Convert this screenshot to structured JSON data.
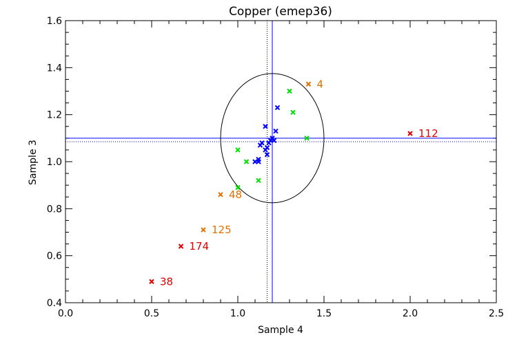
{
  "chart_data": {
    "type": "scatter",
    "title": "Copper (emep36)",
    "xlabel": "Sample 4",
    "ylabel": "Sample 3",
    "xlim": [
      0.0,
      2.5
    ],
    "ylim": [
      0.4,
      1.6
    ],
    "x_ticks": [
      0.0,
      0.5,
      1.0,
      1.5,
      2.0,
      2.5
    ],
    "x_tick_labels": [
      "0.0",
      "0.5",
      "1.0",
      "1.5",
      "2.0",
      "2.5"
    ],
    "y_ticks": [
      0.4,
      0.6,
      0.8,
      1.0,
      1.2,
      1.4,
      1.6
    ],
    "y_tick_labels": [
      "0.4",
      "0.6",
      "0.8",
      "1.0",
      "1.2",
      "1.4",
      "1.6"
    ],
    "reference_lines": {
      "x_solid": 1.2,
      "x_dotted": 1.17,
      "y_solid": 1.1,
      "y_dotted": 1.085
    },
    "ellipse": {
      "cx": 1.2,
      "cy": 1.1,
      "rx": 0.3,
      "ry": 0.275
    },
    "colors": {
      "blue": "#0000ff",
      "green": "#00e000",
      "orange": "#e07000",
      "red": "#e00000",
      "black": "#000000"
    },
    "series": [
      {
        "name": "blue",
        "color": "#0000ff",
        "points": [
          {
            "x": 1.16,
            "y": 1.15
          },
          {
            "x": 1.23,
            "y": 1.23
          },
          {
            "x": 1.22,
            "y": 1.13
          },
          {
            "x": 1.2,
            "y": 1.1
          },
          {
            "x": 1.21,
            "y": 1.09
          },
          {
            "x": 1.19,
            "y": 1.09
          },
          {
            "x": 1.18,
            "y": 1.08
          },
          {
            "x": 1.14,
            "y": 1.08
          },
          {
            "x": 1.13,
            "y": 1.07
          },
          {
            "x": 1.17,
            "y": 1.06
          },
          {
            "x": 1.16,
            "y": 1.05
          },
          {
            "x": 1.17,
            "y": 1.03
          },
          {
            "x": 1.12,
            "y": 1.01
          },
          {
            "x": 1.1,
            "y": 1.0
          },
          {
            "x": 1.12,
            "y": 1.0
          }
        ]
      },
      {
        "name": "green",
        "color": "#00e000",
        "points": [
          {
            "x": 1.3,
            "y": 1.3
          },
          {
            "x": 1.32,
            "y": 1.21
          },
          {
            "x": 1.4,
            "y": 1.1
          },
          {
            "x": 1.0,
            "y": 1.05
          },
          {
            "x": 1.05,
            "y": 1.0
          },
          {
            "x": 1.0,
            "y": 0.89
          },
          {
            "x": 1.12,
            "y": 0.92
          }
        ]
      },
      {
        "name": "orange",
        "color": "#e07000",
        "points": [
          {
            "x": 1.41,
            "y": 1.33,
            "label": "4"
          },
          {
            "x": 0.9,
            "y": 0.86,
            "label": "48"
          },
          {
            "x": 0.8,
            "y": 0.71,
            "label": "125"
          }
        ]
      },
      {
        "name": "red",
        "color": "#e00000",
        "points": [
          {
            "x": 2.0,
            "y": 1.12,
            "label": "112"
          },
          {
            "x": 0.67,
            "y": 0.64,
            "label": "174"
          },
          {
            "x": 0.5,
            "y": 0.49,
            "label": "38"
          }
        ]
      }
    ]
  }
}
